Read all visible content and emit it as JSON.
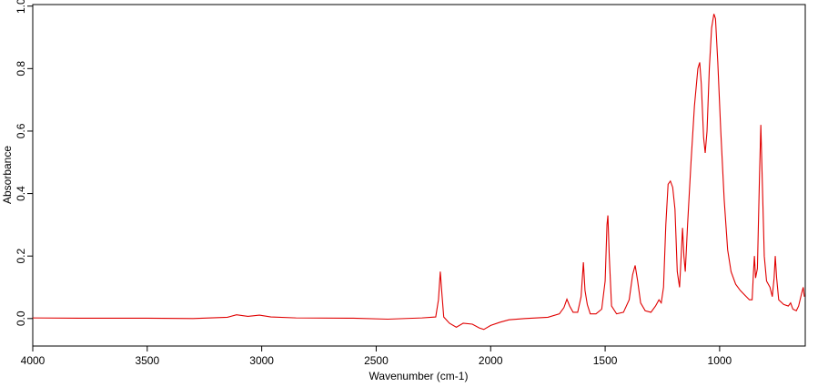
{
  "chart_data": {
    "type": "line",
    "x_label": "Wavenumber (cm-1)",
    "y_label": "Absorbance",
    "xlim": [
      4000,
      626
    ],
    "ylim": [
      -0.088,
      1.005
    ],
    "xticks": [
      4000,
      3500,
      3000,
      2500,
      2000,
      1500,
      1000
    ],
    "yticks": [
      {
        "value": 0,
        "label": "0.0"
      },
      0.2,
      0.4,
      0.6,
      0.8,
      {
        "value": 1,
        "label": "1.0"
      }
    ],
    "grid": false,
    "x": [
      4000,
      3800,
      3500,
      3300,
      3150,
      3110,
      3060,
      3010,
      2960,
      2850,
      2600,
      2450,
      2300,
      2240,
      2228,
      2220,
      2213,
      2205,
      2180,
      2150,
      2120,
      2080,
      2050,
      2030,
      2000,
      1960,
      1920,
      1850,
      1750,
      1700,
      1680,
      1667,
      1655,
      1640,
      1620,
      1605,
      1595,
      1588,
      1578,
      1565,
      1540,
      1515,
      1500,
      1492,
      1488,
      1482,
      1472,
      1450,
      1420,
      1395,
      1380,
      1369,
      1358,
      1345,
      1325,
      1300,
      1280,
      1265,
      1255,
      1245,
      1235,
      1225,
      1215,
      1205,
      1195,
      1185,
      1175,
      1168,
      1162,
      1156,
      1150,
      1140,
      1125,
      1110,
      1095,
      1087,
      1080,
      1070,
      1063,
      1055,
      1045,
      1035,
      1025,
      1018,
      1008,
      995,
      980,
      965,
      950,
      930,
      910,
      890,
      870,
      858,
      852,
      848,
      843,
      835,
      826,
      820,
      814,
      805,
      795,
      780,
      770,
      762,
      757,
      751,
      742,
      720,
      700,
      690,
      680,
      665,
      655,
      642,
      635,
      630
    ],
    "series": [
      {
        "name": "Absorbance",
        "color": "#e00000",
        "values": [
          0.002,
          0.001,
          0.001,
          0.0,
          0.004,
          0.012,
          0.007,
          0.011,
          0.005,
          0.002,
          0.001,
          -0.002,
          0.002,
          0.005,
          0.06,
          0.15,
          0.08,
          0.005,
          -0.015,
          -0.028,
          -0.015,
          -0.018,
          -0.03,
          -0.035,
          -0.022,
          -0.012,
          -0.004,
          0.0,
          0.004,
          0.015,
          0.035,
          0.062,
          0.04,
          0.02,
          0.02,
          0.07,
          0.18,
          0.09,
          0.045,
          0.015,
          0.015,
          0.03,
          0.12,
          0.3,
          0.33,
          0.2,
          0.04,
          0.015,
          0.02,
          0.06,
          0.14,
          0.17,
          0.12,
          0.05,
          0.025,
          0.02,
          0.04,
          0.06,
          0.05,
          0.1,
          0.3,
          0.43,
          0.44,
          0.42,
          0.35,
          0.15,
          0.1,
          0.2,
          0.29,
          0.2,
          0.15,
          0.3,
          0.5,
          0.68,
          0.8,
          0.82,
          0.75,
          0.58,
          0.53,
          0.6,
          0.8,
          0.93,
          0.975,
          0.96,
          0.82,
          0.6,
          0.38,
          0.22,
          0.15,
          0.11,
          0.09,
          0.075,
          0.06,
          0.06,
          0.15,
          0.2,
          0.13,
          0.16,
          0.45,
          0.62,
          0.45,
          0.2,
          0.12,
          0.1,
          0.07,
          0.13,
          0.2,
          0.13,
          0.06,
          0.045,
          0.04,
          0.05,
          0.03,
          0.025,
          0.04,
          0.08,
          0.1,
          0.07
        ]
      }
    ]
  }
}
